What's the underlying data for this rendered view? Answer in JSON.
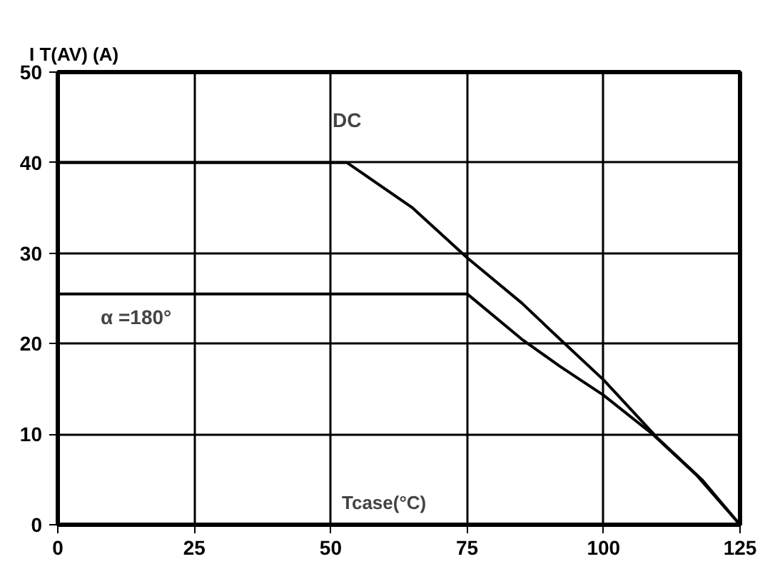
{
  "chart_data": {
    "type": "line",
    "xlabel": "Tcase(°C)",
    "ylabel": "I T(AV) (A)",
    "series": [
      {
        "name": "DC",
        "color": "#000000",
        "x": [
          0,
          53,
          65,
          75,
          85,
          92,
          100,
          110,
          118,
          125
        ],
        "values": [
          40,
          40,
          35,
          29.5,
          24.5,
          20.5,
          16,
          9.5,
          5,
          0
        ]
      },
      {
        "name": "α =180°",
        "color": "#000000",
        "x": [
          0,
          75,
          85,
          92,
          100,
          109,
          117,
          125
        ],
        "values": [
          25.5,
          25.5,
          20.5,
          17.5,
          14.3,
          10,
          5.5,
          0
        ]
      }
    ],
    "xlim": [
      0,
      125
    ],
    "xticks": [
      0,
      25,
      50,
      75,
      100,
      125
    ],
    "ylim": [
      0,
      50
    ],
    "yticks": [
      0,
      10,
      20,
      30,
      40,
      50
    ],
    "grid": true,
    "marker": "none",
    "line_style": "solid"
  }
}
